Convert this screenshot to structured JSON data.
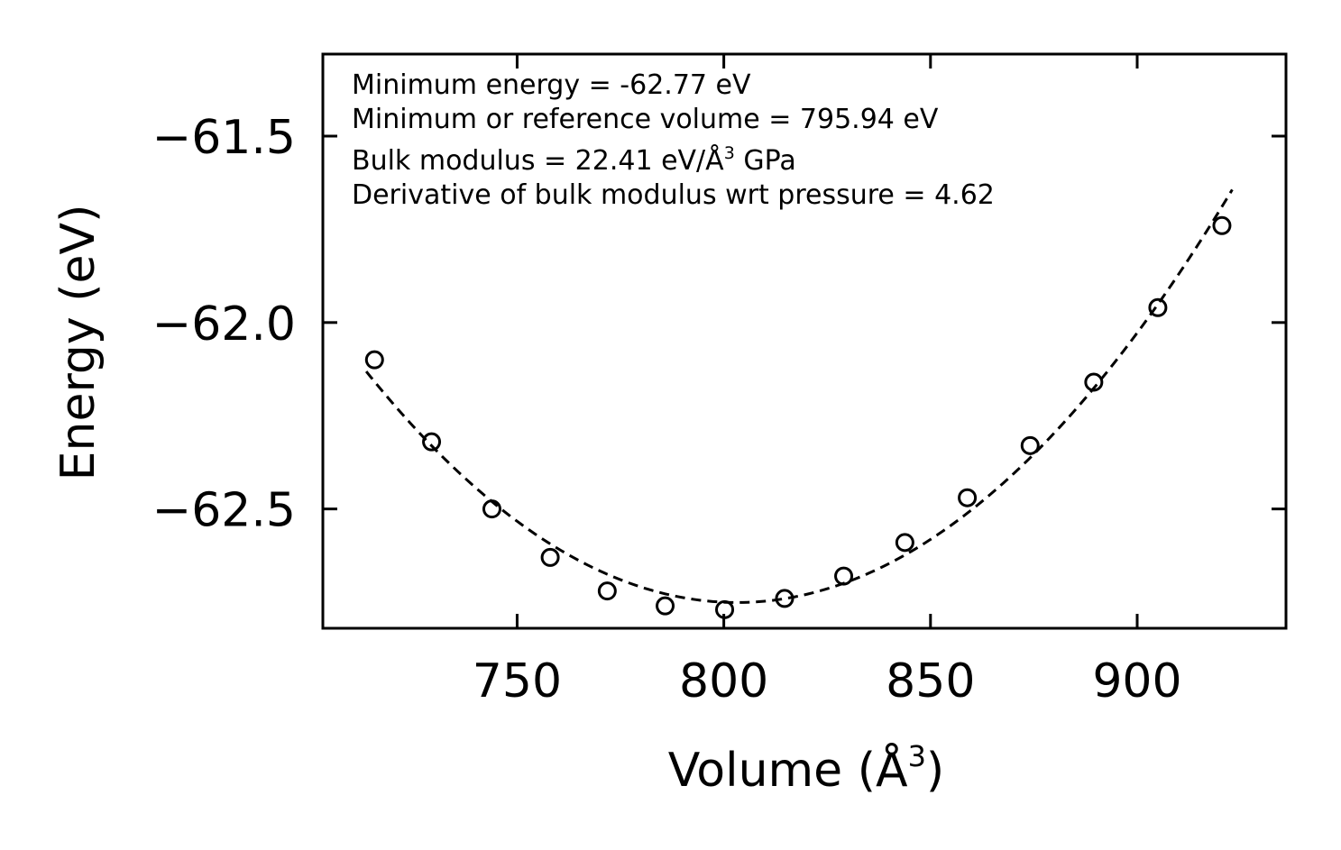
{
  "chart_data": {
    "type": "scatter",
    "xlabel": "Volume (Å3)",
    "xlabel_main": "Volume (Å",
    "xlabel_sup": "3",
    "xlabel_close": ")",
    "ylabel": "Energy (eV)",
    "xlim": [
      703,
      936
    ],
    "ylim": [
      -62.82,
      -61.28
    ],
    "xticks": [
      750,
      800,
      850,
      900
    ],
    "xtick_labels": [
      "750",
      "800",
      "850",
      "900"
    ],
    "yticks": [
      -61.5,
      -62.0,
      -62.5
    ],
    "ytick_labels": [
      "−61.5",
      "−62.0",
      "−62.5"
    ],
    "annotations": {
      "line1": "Minimum energy = -62.77 eV",
      "line2": "Minimum or reference volume = 795.94 eV",
      "line3_main": "Bulk modulus = 22.41 eV/Å",
      "line3_sup": "3",
      "line3_tail": " GPa",
      "line4": "Derivative of bulk modulus wrt pressure = 4.62"
    },
    "series": [
      {
        "name": "data points",
        "marker": "open-circle",
        "x": [
          715.5,
          729.3,
          743.9,
          758.0,
          771.8,
          785.8,
          800.2,
          814.7,
          829.0,
          843.8,
          858.9,
          874.1,
          889.5,
          905.0,
          920.5
        ],
        "y": [
          -62.1,
          -62.32,
          -62.5,
          -62.63,
          -62.72,
          -62.76,
          -62.77,
          -62.74,
          -62.68,
          -62.59,
          -62.47,
          -62.33,
          -62.16,
          -61.96,
          -61.74
        ]
      },
      {
        "name": "fit",
        "style": "dashed",
        "E0": -62.77,
        "V0": 795.94,
        "x_range": [
          713.5,
          923.0
        ]
      }
    ]
  }
}
